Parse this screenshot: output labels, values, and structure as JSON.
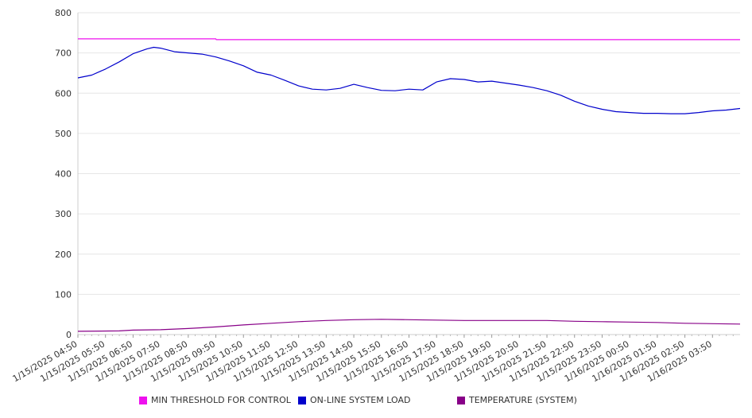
{
  "chart_data": {
    "type": "line",
    "title": "",
    "xlabel": "",
    "ylabel": "",
    "ylim": [
      0,
      800
    ],
    "y_ticks": [
      0,
      100,
      200,
      300,
      400,
      500,
      600,
      700,
      800
    ],
    "grid": true,
    "legend_position": "bottom",
    "x_tick_labels": [
      "1/15/2025 04:50",
      "1/15/2025 05:50",
      "1/15/2025 06:50",
      "1/15/2025 07:50",
      "1/15/2025 08:50",
      "1/15/2025 09:50",
      "1/15/2025 10:50",
      "1/15/2025 11:50",
      "1/15/2025 12:50",
      "1/15/2025 13:50",
      "1/15/2025 14:50",
      "1/15/2025 15:50",
      "1/15/2025 16:50",
      "1/15/2025 17:50",
      "1/15/2025 18:50",
      "1/15/2025 19:50",
      "1/15/2025 20:50",
      "1/15/2025 21:50",
      "1/15/2025 22:50",
      "1/15/2025 23:50",
      "1/16/2025 00:50",
      "1/16/2025 01:50",
      "1/16/2025 02:50",
      "1/16/2025 03:50"
    ],
    "x_end": "1/16/2025 04:50",
    "series": [
      {
        "name": "MIN THRESHOLD FOR CONTROL",
        "color": "#ee11ee",
        "points": [
          [
            "1/15/2025 04:50",
            735
          ],
          [
            "1/15/2025 09:50",
            735
          ],
          [
            "1/15/2025 09:51",
            733
          ],
          [
            "1/16/2025 04:50",
            733
          ]
        ]
      },
      {
        "name": "ON-LINE SYSTEM LOAD",
        "color": "#0000cc",
        "points": [
          [
            "1/15/2025 04:50",
            638
          ],
          [
            "1/15/2025 05:20",
            645
          ],
          [
            "1/15/2025 05:50",
            660
          ],
          [
            "1/15/2025 06:20",
            678
          ],
          [
            "1/15/2025 06:50",
            698
          ],
          [
            "1/15/2025 07:20",
            710
          ],
          [
            "1/15/2025 07:35",
            714
          ],
          [
            "1/15/2025 07:50",
            712
          ],
          [
            "1/15/2025 08:20",
            703
          ],
          [
            "1/15/2025 08:50",
            700
          ],
          [
            "1/15/2025 09:20",
            697
          ],
          [
            "1/15/2025 09:50",
            690
          ],
          [
            "1/15/2025 10:20",
            680
          ],
          [
            "1/15/2025 10:50",
            668
          ],
          [
            "1/15/2025 11:20",
            652
          ],
          [
            "1/15/2025 11:50",
            645
          ],
          [
            "1/15/2025 12:20",
            632
          ],
          [
            "1/15/2025 12:50",
            618
          ],
          [
            "1/15/2025 13:20",
            610
          ],
          [
            "1/15/2025 13:50",
            608
          ],
          [
            "1/15/2025 14:20",
            612
          ],
          [
            "1/15/2025 14:50",
            622
          ],
          [
            "1/15/2025 15:20",
            614
          ],
          [
            "1/15/2025 15:50",
            607
          ],
          [
            "1/15/2025 16:20",
            606
          ],
          [
            "1/15/2025 16:50",
            610
          ],
          [
            "1/15/2025 17:20",
            608
          ],
          [
            "1/15/2025 17:50",
            628
          ],
          [
            "1/15/2025 18:20",
            636
          ],
          [
            "1/15/2025 18:50",
            634
          ],
          [
            "1/15/2025 19:20",
            628
          ],
          [
            "1/15/2025 19:50",
            630
          ],
          [
            "1/15/2025 20:20",
            625
          ],
          [
            "1/15/2025 20:50",
            620
          ],
          [
            "1/15/2025 21:20",
            614
          ],
          [
            "1/15/2025 21:50",
            606
          ],
          [
            "1/15/2025 22:20",
            595
          ],
          [
            "1/15/2025 22:50",
            580
          ],
          [
            "1/15/2025 23:20",
            568
          ],
          [
            "1/15/2025 23:50",
            560
          ],
          [
            "1/16/2025 00:20",
            554
          ],
          [
            "1/16/2025 00:50",
            552
          ],
          [
            "1/16/2025 01:20",
            550
          ],
          [
            "1/16/2025 01:50",
            550
          ],
          [
            "1/16/2025 02:20",
            549
          ],
          [
            "1/16/2025 02:50",
            549
          ],
          [
            "1/16/2025 03:20",
            552
          ],
          [
            "1/16/2025 03:50",
            556
          ],
          [
            "1/16/2025 04:20",
            558
          ],
          [
            "1/16/2025 04:50",
            562
          ]
        ]
      },
      {
        "name": "TEMPERATURE (SYSTEM)",
        "color": "#880088",
        "points": [
          [
            "1/15/2025 04:50",
            8
          ],
          [
            "1/15/2025 06:20",
            9
          ],
          [
            "1/15/2025 06:50",
            11
          ],
          [
            "1/15/2025 07:50",
            12
          ],
          [
            "1/15/2025 08:50",
            15
          ],
          [
            "1/15/2025 09:50",
            19
          ],
          [
            "1/15/2025 10:50",
            24
          ],
          [
            "1/15/2025 11:50",
            28
          ],
          [
            "1/15/2025 12:50",
            32
          ],
          [
            "1/15/2025 13:50",
            35
          ],
          [
            "1/15/2025 14:50",
            37
          ],
          [
            "1/15/2025 15:50",
            38
          ],
          [
            "1/15/2025 16:50",
            37
          ],
          [
            "1/15/2025 17:50",
            36
          ],
          [
            "1/15/2025 18:50",
            35
          ],
          [
            "1/15/2025 19:50",
            35
          ],
          [
            "1/15/2025 20:50",
            35
          ],
          [
            "1/15/2025 21:50",
            35
          ],
          [
            "1/15/2025 22:50",
            33
          ],
          [
            "1/15/2025 23:50",
            32
          ],
          [
            "1/16/2025 00:50",
            31
          ],
          [
            "1/16/2025 01:50",
            30
          ],
          [
            "1/16/2025 02:50",
            28
          ],
          [
            "1/16/2025 03:50",
            27
          ],
          [
            "1/16/2025 04:50",
            26
          ]
        ]
      }
    ]
  }
}
